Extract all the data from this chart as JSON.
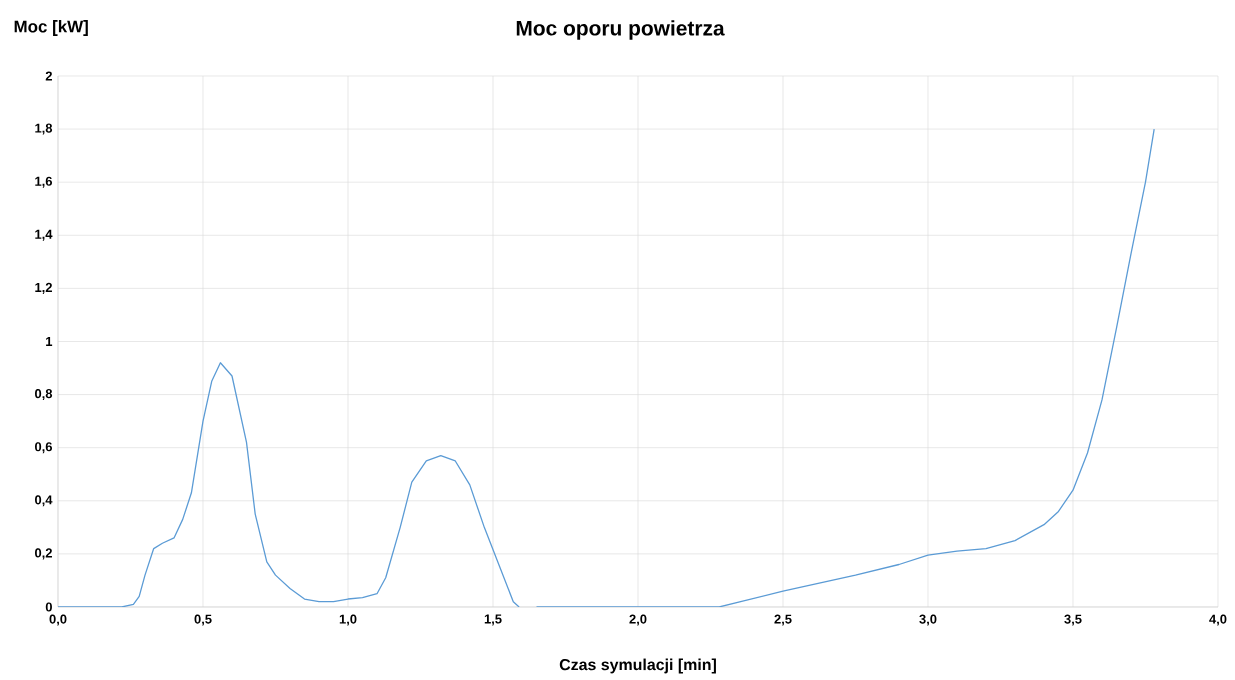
{
  "chart_data": {
    "type": "line",
    "title": "Moc oporu powietrza",
    "xlabel": "Czas symulacji [min]",
    "ylabel": "Moc [kW]",
    "xlim": [
      0,
      4
    ],
    "ylim": [
      0,
      2
    ],
    "xticks": [
      {
        "value": 0,
        "label": "0,0"
      },
      {
        "value": 0.5,
        "label": "0,5"
      },
      {
        "value": 1,
        "label": "1,0"
      },
      {
        "value": 1.5,
        "label": "1,5"
      },
      {
        "value": 2,
        "label": "2,0"
      },
      {
        "value": 2.5,
        "label": "2,5"
      },
      {
        "value": 3,
        "label": "3,0"
      },
      {
        "value": 3.5,
        "label": "3,5"
      },
      {
        "value": 4,
        "label": "4,0"
      }
    ],
    "yticks": [
      0,
      {
        "value": 0.2,
        "label": "0,2"
      },
      {
        "value": 0.4,
        "label": "0,4"
      },
      {
        "value": 0.6,
        "label": "0,6"
      },
      {
        "value": 0.8,
        "label": "0,8"
      },
      1,
      {
        "value": 1.2,
        "label": "1,2"
      },
      {
        "value": 1.4,
        "label": "1,4"
      },
      {
        "value": 1.6,
        "label": "1,6"
      },
      {
        "value": 1.8,
        "label": "1,8"
      },
      2
    ],
    "grid": true,
    "series": [
      {
        "color": "#5b9bd5",
        "x": [
          0,
          0.22,
          0.26,
          0.28,
          0.3,
          0.33,
          0.36,
          0.4,
          0.43,
          0.46,
          0.5,
          0.53,
          0.56,
          0.6,
          0.65,
          0.68,
          0.72,
          0.75,
          0.8,
          0.85,
          0.9,
          0.95,
          1.0,
          1.05,
          1.1,
          1.13,
          1.18,
          1.22,
          1.27,
          1.32,
          1.37,
          1.42,
          1.47,
          1.52,
          1.57,
          1.59,
          1.62,
          1.65,
          2.28,
          2.5,
          2.75,
          2.9,
          3.0,
          3.1,
          3.2,
          3.3,
          3.4,
          3.45,
          3.5,
          3.55,
          3.6,
          3.65,
          3.7,
          3.75,
          3.78
        ],
        "values": [
          0,
          0,
          0.01,
          0.04,
          0.12,
          0.22,
          0.24,
          0.26,
          0.33,
          0.43,
          0.7,
          0.85,
          0.92,
          0.87,
          0.62,
          0.35,
          0.17,
          0.12,
          0.07,
          0.03,
          0.02,
          0.02,
          0.03,
          0.035,
          0.05,
          0.11,
          0.3,
          0.47,
          0.55,
          0.57,
          0.55,
          0.46,
          0.3,
          0.16,
          0.02,
          0,
          null,
          0,
          0,
          0.06,
          0.12,
          0.16,
          0.195,
          0.21,
          0.22,
          0.25,
          0.31,
          0.36,
          0.44,
          0.58,
          0.78,
          1.05,
          1.33,
          1.6,
          1.8
        ]
      }
    ]
  }
}
